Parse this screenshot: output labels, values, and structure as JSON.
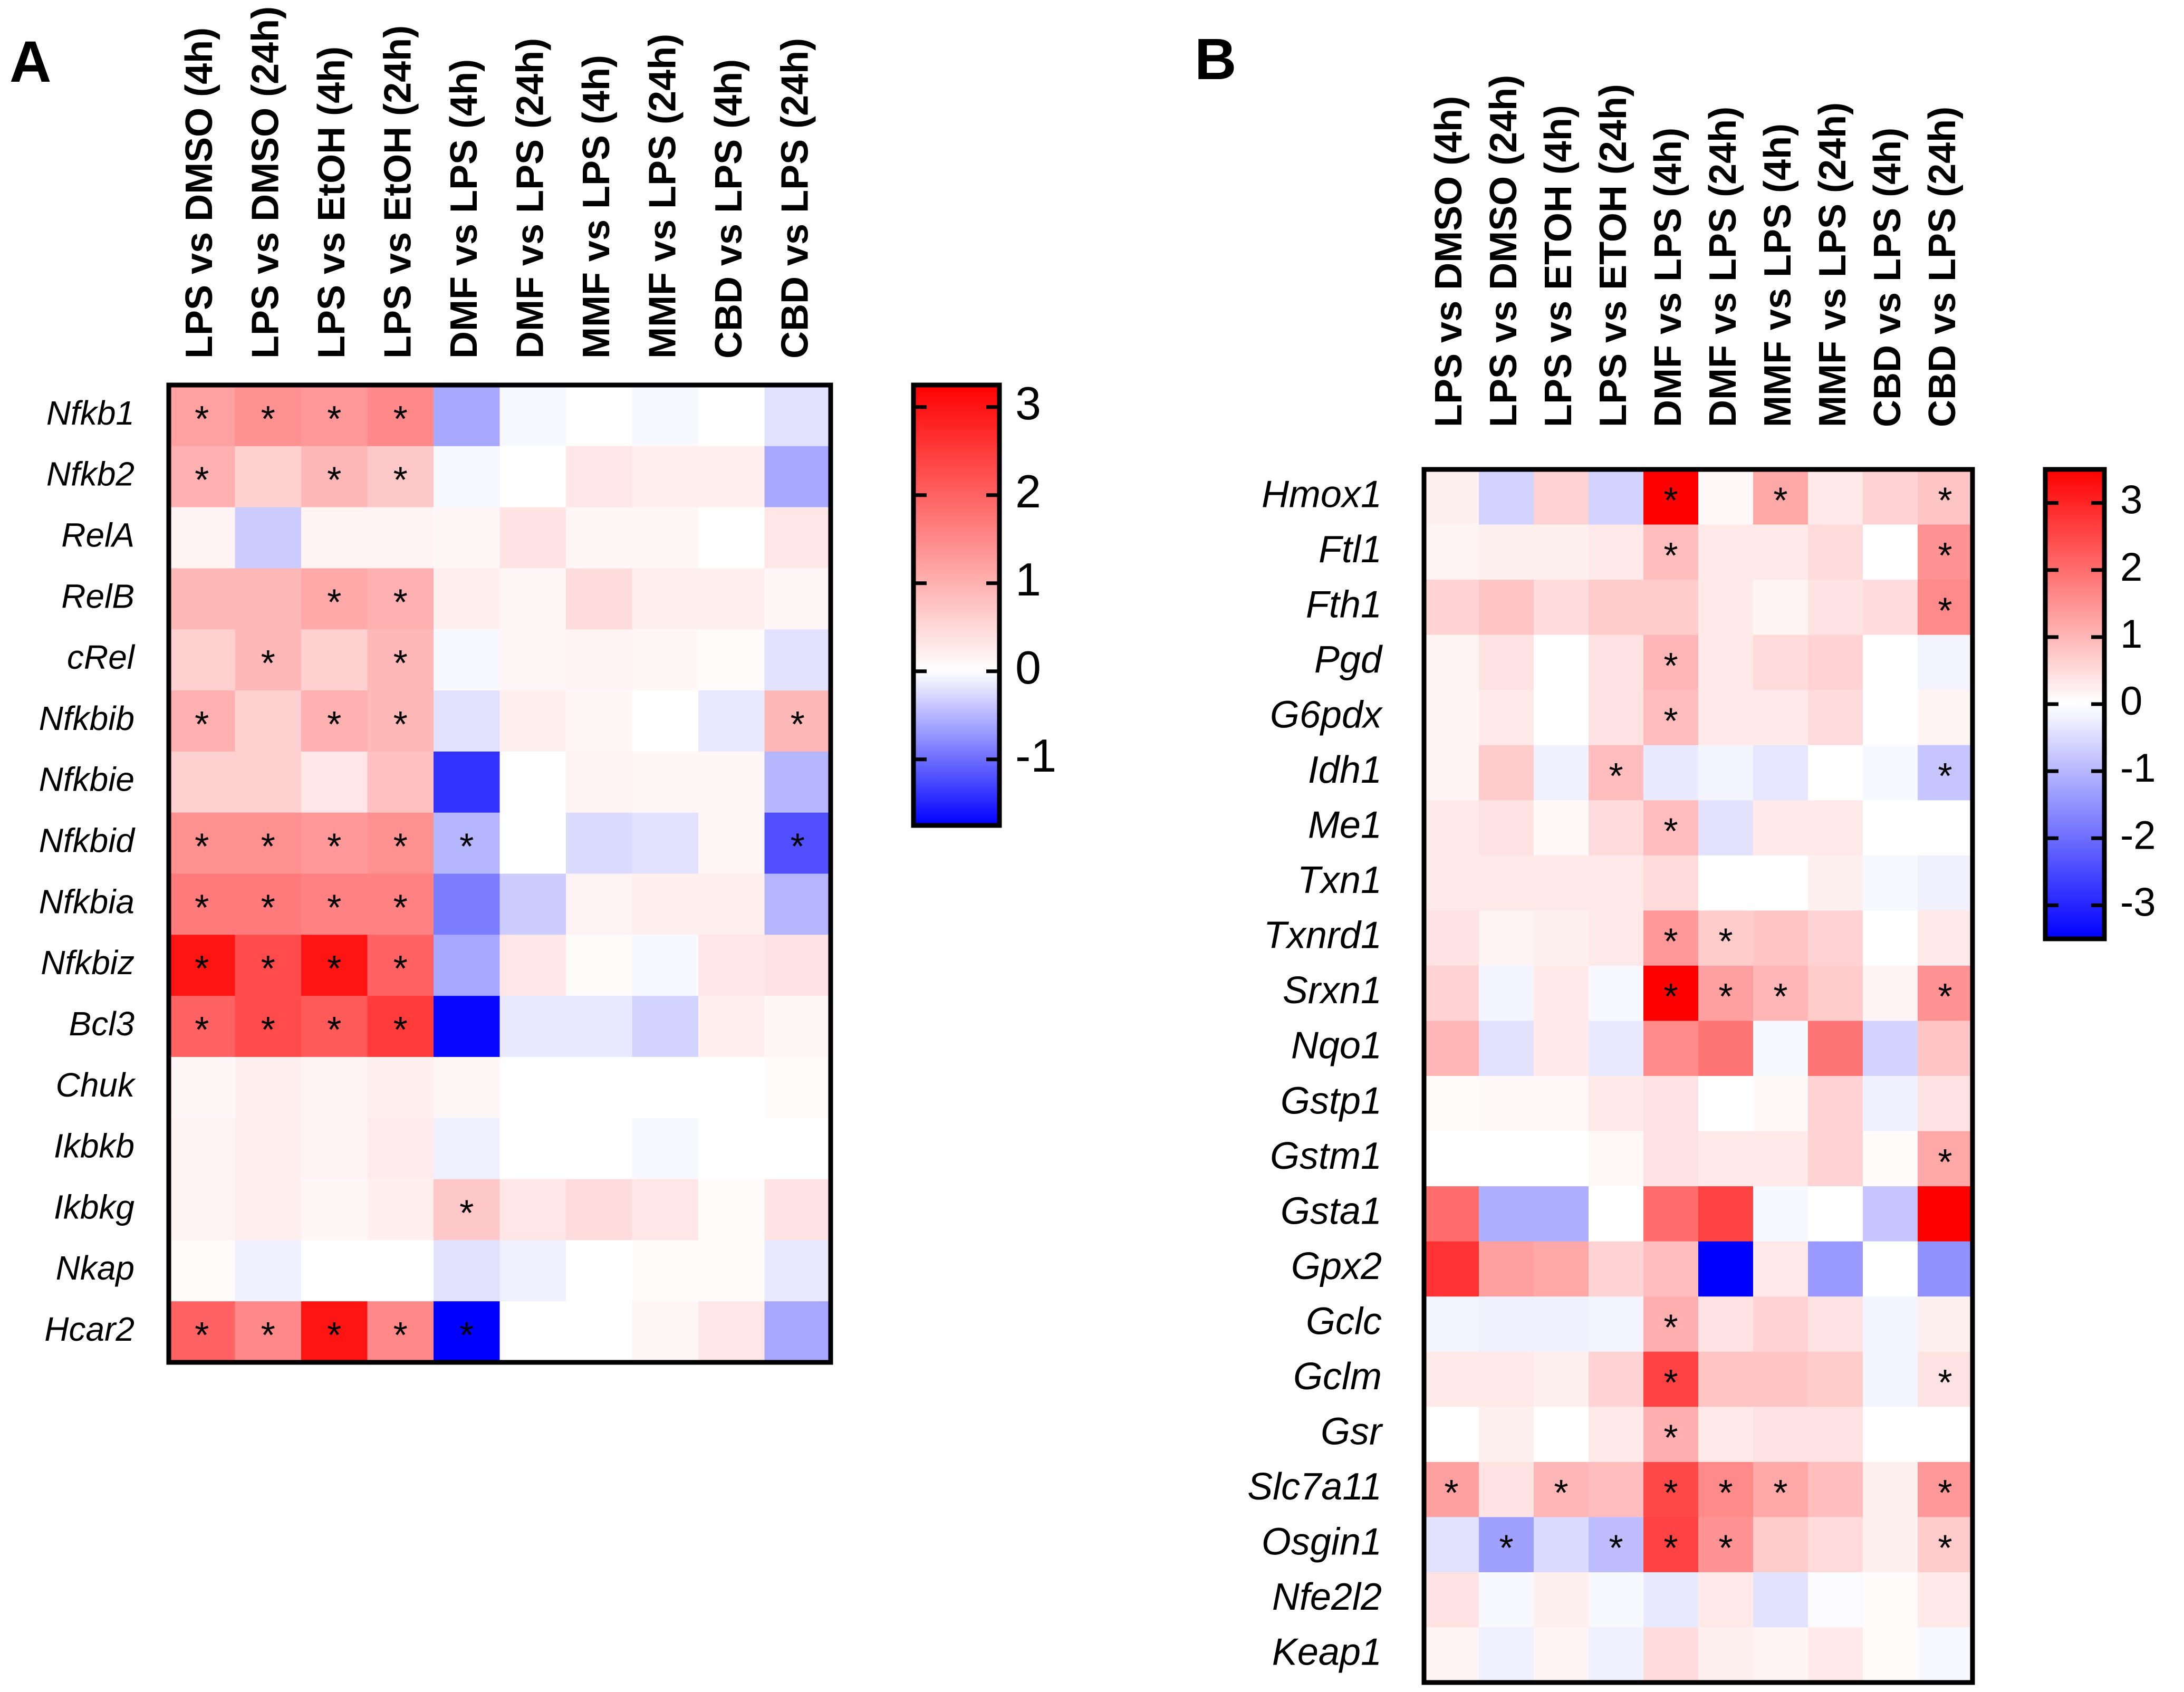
{
  "chart_data": [
    {
      "type": "heatmap",
      "panel": "A",
      "columns": [
        "LPS vs DMSO (4h)",
        "LPS vs DMSO (24h)",
        "LPS vs EtOH (4h)",
        "LPS vs EtOH (24h)",
        "DMF vs LPS (4h)",
        "DMF vs LPS (24h)",
        "MMF vs LPS (4h)",
        "MMF vs LPS (24h)",
        "CBD vs LPS (4h)",
        "CBD vs LPS (24h)"
      ],
      "rows": [
        "Nfkb1",
        "Nfkb2",
        "RelA",
        "RelB",
        "cRel",
        "Nfkbib",
        "Nfkbie",
        "Nfkbid",
        "Nfkbia",
        "Nfkbiz",
        "Bcl3",
        "Chuk",
        "Ikbkb",
        "Ikbkg",
        "Nkap",
        "Hcar2"
      ],
      "values": [
        [
          1.2,
          1.4,
          1.3,
          1.5,
          -0.6,
          -0.05,
          0.0,
          -0.05,
          0.0,
          -0.2
        ],
        [
          1.0,
          0.6,
          0.9,
          0.7,
          -0.05,
          0.0,
          0.3,
          0.2,
          0.2,
          -0.6
        ],
        [
          0.15,
          -0.35,
          0.15,
          0.15,
          0.1,
          0.35,
          0.1,
          0.1,
          0.0,
          0.3
        ],
        [
          0.9,
          0.9,
          1.1,
          1.0,
          0.2,
          0.1,
          0.45,
          0.2,
          0.2,
          0.1
        ],
        [
          0.6,
          0.9,
          0.6,
          0.9,
          -0.05,
          0.1,
          0.15,
          0.1,
          0.05,
          -0.2
        ],
        [
          1.0,
          0.6,
          1.0,
          0.9,
          -0.2,
          0.2,
          0.1,
          0.0,
          -0.15,
          0.9
        ],
        [
          0.6,
          0.6,
          0.3,
          0.8,
          -1.4,
          0.0,
          0.15,
          0.1,
          0.1,
          -0.5
        ],
        [
          1.4,
          1.4,
          1.3,
          1.4,
          -0.5,
          0.0,
          -0.25,
          -0.2,
          0.1,
          -1.2
        ],
        [
          1.7,
          1.7,
          1.6,
          1.6,
          -0.9,
          -0.35,
          0.15,
          0.2,
          0.2,
          -0.5
        ],
        [
          3.0,
          2.3,
          3.0,
          2.0,
          -0.6,
          0.3,
          0.05,
          -0.05,
          0.3,
          0.35
        ],
        [
          2.0,
          2.3,
          2.1,
          2.5,
          -1.7,
          -0.15,
          -0.15,
          -0.3,
          0.2,
          0.1
        ],
        [
          0.1,
          0.2,
          0.15,
          0.2,
          0.1,
          0.0,
          0.0,
          0.0,
          0.0,
          0.05
        ],
        [
          0.15,
          0.2,
          0.15,
          0.25,
          -0.1,
          0.0,
          0.0,
          -0.05,
          0.0,
          0.0
        ],
        [
          0.15,
          0.2,
          0.1,
          0.2,
          0.7,
          0.3,
          0.45,
          0.3,
          0.05,
          0.35
        ],
        [
          0.05,
          -0.1,
          0.0,
          0.0,
          -0.2,
          -0.1,
          0.0,
          0.05,
          0.05,
          -0.15
        ],
        [
          2.0,
          1.5,
          3.0,
          1.5,
          -1.9,
          0.0,
          0.0,
          0.1,
          0.3,
          -0.6
        ]
      ],
      "significant": [
        [
          1,
          1,
          1,
          1,
          0,
          0,
          0,
          0,
          0,
          0
        ],
        [
          1,
          0,
          1,
          1,
          0,
          0,
          0,
          0,
          0,
          0
        ],
        [
          0,
          0,
          0,
          0,
          0,
          0,
          0,
          0,
          0,
          0
        ],
        [
          0,
          0,
          1,
          1,
          0,
          0,
          0,
          0,
          0,
          0
        ],
        [
          0,
          1,
          0,
          1,
          0,
          0,
          0,
          0,
          0,
          0
        ],
        [
          1,
          0,
          1,
          1,
          0,
          0,
          0,
          0,
          0,
          1
        ],
        [
          0,
          0,
          0,
          0,
          0,
          0,
          0,
          0,
          0,
          0
        ],
        [
          1,
          1,
          1,
          1,
          1,
          0,
          0,
          0,
          0,
          1
        ],
        [
          1,
          1,
          1,
          1,
          0,
          0,
          0,
          0,
          0,
          0
        ],
        [
          1,
          1,
          1,
          1,
          0,
          0,
          0,
          0,
          0,
          0
        ],
        [
          1,
          1,
          1,
          1,
          0,
          0,
          0,
          0,
          0,
          0
        ],
        [
          0,
          0,
          0,
          0,
          0,
          0,
          0,
          0,
          0,
          0
        ],
        [
          0,
          0,
          0,
          0,
          0,
          0,
          0,
          0,
          0,
          0
        ],
        [
          0,
          0,
          0,
          0,
          1,
          0,
          0,
          0,
          0,
          0
        ],
        [
          0,
          0,
          0,
          0,
          0,
          0,
          0,
          0,
          0,
          0
        ],
        [
          1,
          1,
          1,
          1,
          1,
          0,
          0,
          0,
          0,
          0
        ]
      ],
      "significance_marker": "*",
      "color_range": [
        -1.75,
        3.25
      ],
      "colorbar_ticks": [
        "3",
        "2",
        "1",
        "0",
        "-1"
      ],
      "colorbar_tick_values": [
        3,
        2,
        1,
        0,
        -1
      ],
      "colormap": {
        "low": "#0000ff",
        "mid": "#ffffff",
        "high": "#ff0000"
      }
    },
    {
      "type": "heatmap",
      "panel": "B",
      "columns": [
        "LPS vs DMSO (4h)",
        "LPS vs DMSO (24h)",
        "LPS vs ETOH (4h)",
        "LPS vs ETOH (24h)",
        "DMF vs LPS (4h)",
        "DMF vs LPS (24h)",
        "MMF vs LPS (4h)",
        "MMF vs LPS (24h)",
        "CBD vs LPS (4h)",
        "CBD vs LPS (24h)"
      ],
      "rows": [
        "Hmox1",
        "Ftl1",
        "Fth1",
        "Pgd",
        "G6pdx",
        "Idh1",
        "Me1",
        "Txn1",
        "Txnrd1",
        "Srxn1",
        "Nqo1",
        "Gstp1",
        "Gstm1",
        "Gsta1",
        "Gpx2",
        "Gclc",
        "Gclm",
        "Gsr",
        "Slc7a11",
        "Osgin1",
        "Nfe2l2",
        "Keap1"
      ],
      "values": [
        [
          0.2,
          -0.6,
          0.6,
          -0.6,
          3.5,
          0.1,
          1.2,
          0.3,
          0.6,
          0.8
        ],
        [
          0.15,
          0.2,
          0.2,
          0.3,
          0.9,
          0.3,
          0.3,
          0.5,
          0.0,
          1.5
        ],
        [
          0.6,
          0.8,
          0.5,
          0.7,
          0.7,
          0.3,
          0.15,
          0.4,
          0.5,
          1.6
        ],
        [
          0.15,
          0.4,
          0.0,
          0.4,
          1.0,
          0.3,
          0.5,
          0.6,
          0.0,
          -0.15
        ],
        [
          0.15,
          0.3,
          0.0,
          0.4,
          0.9,
          0.3,
          0.3,
          0.5,
          0.0,
          0.15
        ],
        [
          0.15,
          0.7,
          -0.2,
          0.9,
          -0.3,
          -0.15,
          -0.35,
          0.0,
          -0.1,
          -0.8
        ],
        [
          0.3,
          0.4,
          0.1,
          0.5,
          0.9,
          -0.4,
          0.3,
          0.3,
          0.0,
          0.0
        ],
        [
          0.3,
          0.3,
          0.3,
          0.3,
          0.5,
          0.0,
          0.0,
          0.2,
          -0.1,
          -0.2
        ],
        [
          0.4,
          0.15,
          0.2,
          0.3,
          1.4,
          0.7,
          0.8,
          0.6,
          0.0,
          0.3
        ],
        [
          0.6,
          -0.15,
          0.3,
          -0.1,
          3.5,
          1.3,
          1.0,
          0.7,
          0.15,
          1.5
        ],
        [
          1.0,
          -0.4,
          0.3,
          -0.3,
          1.6,
          1.9,
          -0.1,
          1.9,
          -0.6,
          0.8
        ],
        [
          0.05,
          0.1,
          0.1,
          0.3,
          0.4,
          0.0,
          0.1,
          0.6,
          -0.2,
          0.4
        ],
        [
          0.0,
          0.0,
          0.0,
          0.1,
          0.4,
          0.3,
          0.3,
          0.6,
          0.05,
          1.2
        ],
        [
          2.0,
          -1.1,
          -1.1,
          0.0,
          2.0,
          2.6,
          -0.1,
          0.0,
          -0.8,
          3.7
        ],
        [
          2.8,
          1.3,
          1.2,
          0.6,
          0.9,
          -3.6,
          0.3,
          -1.4,
          0.0,
          -1.5
        ],
        [
          -0.15,
          -0.2,
          -0.2,
          -0.15,
          1.1,
          0.4,
          0.6,
          0.4,
          -0.15,
          0.2
        ],
        [
          0.3,
          0.3,
          0.2,
          0.6,
          2.6,
          0.8,
          0.8,
          0.7,
          -0.15,
          0.4
        ],
        [
          0.0,
          0.2,
          0.0,
          0.3,
          1.1,
          0.3,
          0.4,
          0.4,
          0.0,
          0.0
        ],
        [
          1.3,
          0.4,
          1.0,
          0.9,
          2.5,
          1.6,
          1.2,
          0.9,
          0.2,
          1.4
        ],
        [
          -0.4,
          -1.3,
          -0.5,
          -0.9,
          2.6,
          1.5,
          0.7,
          0.5,
          0.2,
          0.7
        ],
        [
          0.4,
          -0.1,
          0.2,
          -0.1,
          -0.3,
          0.3,
          -0.4,
          -0.05,
          0.05,
          0.3
        ],
        [
          0.15,
          -0.2,
          0.15,
          -0.2,
          0.5,
          0.2,
          0.15,
          0.3,
          0.05,
          -0.1
        ]
      ],
      "significant": [
        [
          0,
          0,
          0,
          0,
          1,
          0,
          1,
          0,
          0,
          1
        ],
        [
          0,
          0,
          0,
          0,
          1,
          0,
          0,
          0,
          0,
          1
        ],
        [
          0,
          0,
          0,
          0,
          0,
          0,
          0,
          0,
          0,
          1
        ],
        [
          0,
          0,
          0,
          0,
          1,
          0,
          0,
          0,
          0,
          0
        ],
        [
          0,
          0,
          0,
          0,
          1,
          0,
          0,
          0,
          0,
          0
        ],
        [
          0,
          0,
          0,
          1,
          0,
          0,
          0,
          0,
          0,
          1
        ],
        [
          0,
          0,
          0,
          0,
          1,
          0,
          0,
          0,
          0,
          0
        ],
        [
          0,
          0,
          0,
          0,
          0,
          0,
          0,
          0,
          0,
          0
        ],
        [
          0,
          0,
          0,
          0,
          1,
          1,
          0,
          0,
          0,
          0
        ],
        [
          0,
          0,
          0,
          0,
          1,
          1,
          1,
          0,
          0,
          1
        ],
        [
          0,
          0,
          0,
          0,
          0,
          0,
          0,
          0,
          0,
          0
        ],
        [
          0,
          0,
          0,
          0,
          0,
          0,
          0,
          0,
          0,
          0
        ],
        [
          0,
          0,
          0,
          0,
          0,
          0,
          0,
          0,
          0,
          1
        ],
        [
          0,
          0,
          0,
          0,
          0,
          0,
          0,
          0,
          0,
          0
        ],
        [
          0,
          0,
          0,
          0,
          0,
          0,
          0,
          0,
          0,
          0
        ],
        [
          0,
          0,
          0,
          0,
          1,
          0,
          0,
          0,
          0,
          0
        ],
        [
          0,
          0,
          0,
          0,
          1,
          0,
          0,
          0,
          0,
          1
        ],
        [
          0,
          0,
          0,
          0,
          1,
          0,
          0,
          0,
          0,
          0
        ],
        [
          1,
          0,
          1,
          0,
          1,
          1,
          1,
          0,
          0,
          1
        ],
        [
          0,
          1,
          0,
          1,
          1,
          1,
          0,
          0,
          0,
          1
        ],
        [
          0,
          0,
          0,
          0,
          0,
          0,
          0,
          0,
          0,
          0
        ],
        [
          0,
          0,
          0,
          0,
          0,
          0,
          0,
          0,
          0,
          0
        ]
      ],
      "significance_marker": "*",
      "color_range": [
        -3.5,
        3.5
      ],
      "colorbar_ticks": [
        "3",
        "2",
        "1",
        "0",
        "-1",
        "-2",
        "-3"
      ],
      "colorbar_tick_values": [
        3,
        2,
        1,
        0,
        -1,
        -2,
        -3
      ],
      "colormap": {
        "low": "#0000ff",
        "mid": "#ffffff",
        "high": "#ff0000"
      }
    }
  ]
}
